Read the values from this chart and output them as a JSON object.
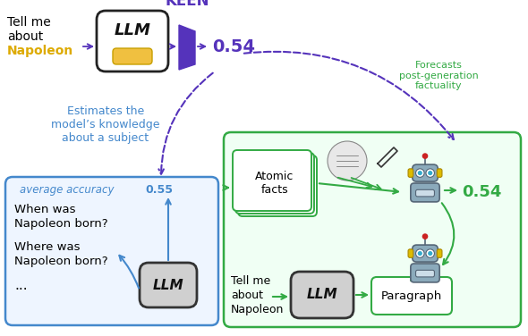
{
  "bg_color": "#ffffff",
  "keen_label": "KEEN",
  "keen_color": "#5533bb",
  "keen_score_top": "0.54",
  "keen_score_color": "#5533bb",
  "llm_text": "LLM",
  "napoleon_color": "#ddaa00",
  "purple_box_color": "#5533bb",
  "estimates_text": "Estimates the\nmodel’s knowledge\nabout a subject",
  "estimates_color": "#4488cc",
  "avg_acc_text": "average accuracy",
  "avg_acc_score": "0.55",
  "avg_acc_color": "#4488cc",
  "blue_box_border": "#4488cc",
  "blue_box_fill": "#eef5ff",
  "green_box_border": "#33aa44",
  "green_box_fill": "#f0fff4",
  "atomic_facts_text": "Atomic\nfacts",
  "paragraph_text": "Paragraph",
  "forecasts_text": "Forecasts\npost-generation\nfactuality",
  "forecasts_color": "#33aa44",
  "score_054_green": "0.54",
  "green_color": "#33aa44",
  "arrow_purple": "#5533bb",
  "arrow_blue": "#4488cc",
  "arrow_green": "#33aa44",
  "robot_body": "#8baabb",
  "robot_head": "#8baabb",
  "robot_eye": "#33aacc",
  "robot_ear": "#ddbb00",
  "robot_antenna_ball": "#cc2222",
  "robot_screen": "#ccdde8"
}
